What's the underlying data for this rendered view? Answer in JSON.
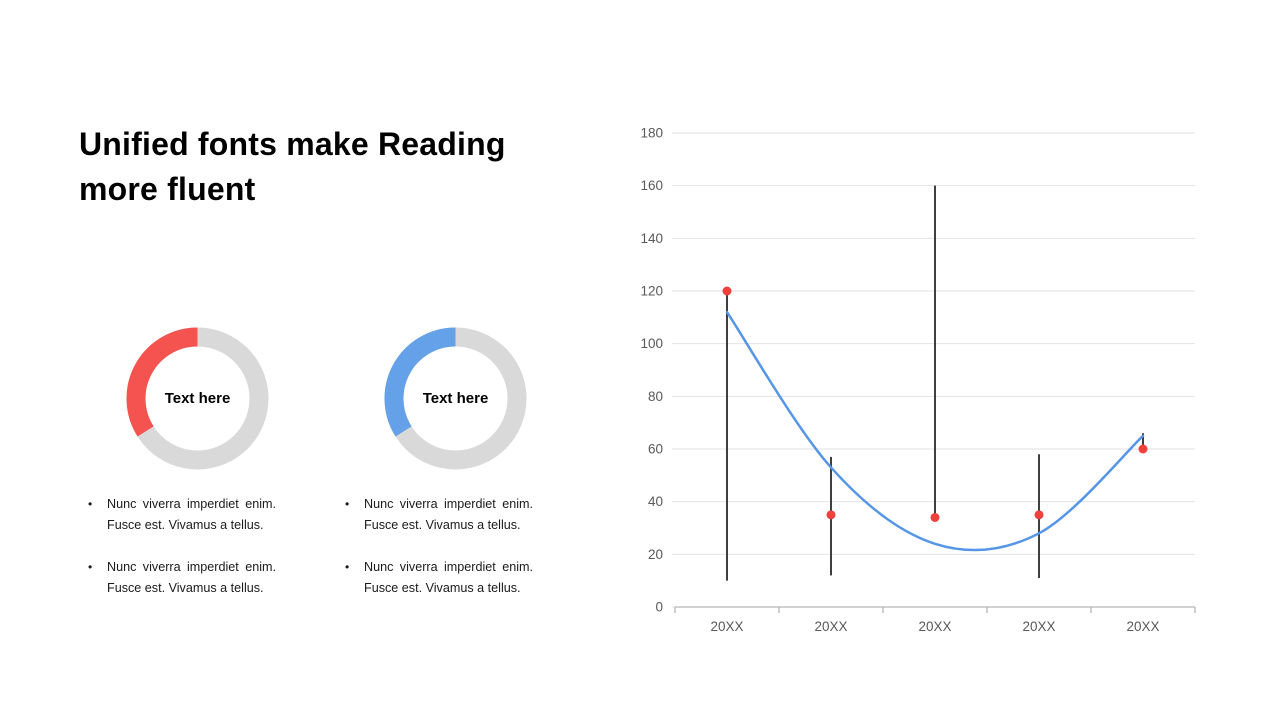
{
  "page": {
    "background": "#FFFFFF"
  },
  "title": {
    "line1": "Unified fonts make Reading",
    "line2": "more fluent",
    "color": "#000000"
  },
  "bullet_char": "•",
  "columns": [
    {
      "bullets": [
        "Nunc viverra imperdiet enim. Fusce est. Vivamus a tellus.",
        "Nunc viverra imperdiet enim. Fusce est. Vivamus a tellus."
      ]
    },
    {
      "bullets": [
        "Nunc viverra imperdiet enim. Fusce est. Vivamus a tellus.",
        "Nunc viverra imperdiet enim. Fusce est. Vivamus a tellus."
      ]
    }
  ],
  "chart_data": [
    {
      "type": "scatter",
      "title": "",
      "categories": [
        "20XX",
        "20XX",
        "20XX",
        "20XX",
        "20XX"
      ],
      "series": [
        {
          "name": "data-points",
          "type": "scatter",
          "color": "#F2413D",
          "values": [
            120,
            35,
            34,
            35,
            60
          ]
        },
        {
          "name": "trendline",
          "type": "line",
          "color": "#5596E6",
          "values": [
            112,
            53,
            24,
            28,
            65
          ]
        },
        {
          "name": "high-low-lines",
          "type": "errorbar",
          "color": "#3F3F3F",
          "ranges": [
            [
              10,
              120
            ],
            [
              12,
              57
            ],
            [
              34,
              160
            ],
            [
              11,
              58
            ],
            [
              60,
              66
            ]
          ]
        }
      ],
      "xlabel": "",
      "ylabel": "",
      "ylim": [
        0,
        180
      ],
      "ytick_step": 20,
      "grid": true,
      "legend": "none",
      "gridline_color": "#E2E2E2",
      "axis_color": "#B7B7B7",
      "tick_label_color": "#595959"
    },
    {
      "type": "pie",
      "subtype": "donut",
      "label": "Text here",
      "slices": [
        {
          "name": "filled",
          "value": 34,
          "color": "#F5534F"
        },
        {
          "name": "track",
          "value": 66,
          "color": "#D9D9D9"
        }
      ]
    },
    {
      "type": "pie",
      "subtype": "donut",
      "label": "Text here",
      "slices": [
        {
          "name": "filled",
          "value": 34,
          "color": "#64A1E8"
        },
        {
          "name": "track",
          "value": 66,
          "color": "#D9D9D9"
        }
      ]
    }
  ]
}
